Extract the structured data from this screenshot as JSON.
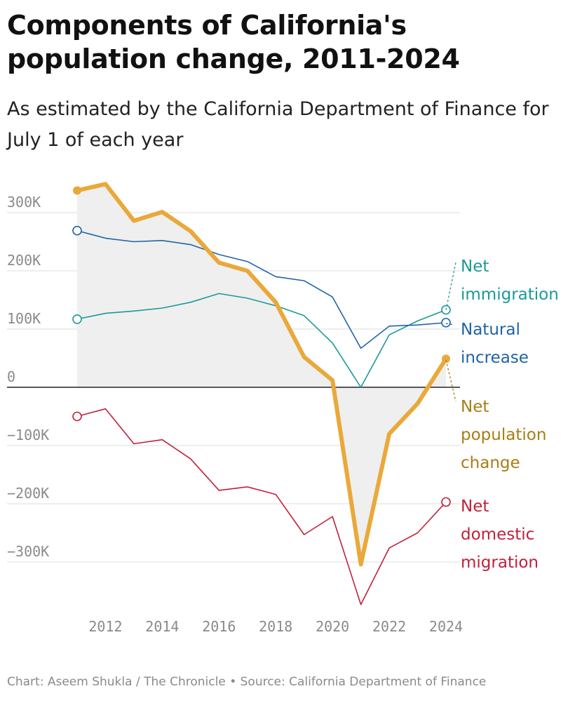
{
  "header": {
    "title": "Components of California's population change, 2011-2024",
    "subtitle": "As estimated by the California Department of Finance for July 1 of each year"
  },
  "footer": {
    "credit": "Chart: Aseem Shukla / The Chronicle • Source: California Department of Finance"
  },
  "chart_data": {
    "type": "line",
    "title": "Components of California's population change, 2011-2024",
    "subtitle": "As estimated by the California Department of Finance for July 1 of each year",
    "x": [
      2011,
      2012,
      2013,
      2014,
      2015,
      2016,
      2017,
      2018,
      2019,
      2020,
      2021,
      2022,
      2023,
      2024
    ],
    "x_ticks": [
      2012,
      2014,
      2016,
      2018,
      2020,
      2022,
      2024
    ],
    "x_tick_labels": [
      "2012",
      "2014",
      "2016",
      "2018",
      "2020",
      "2022",
      "2024"
    ],
    "y_ticks": [
      300000,
      200000,
      100000,
      0,
      -100000,
      -200000,
      -300000
    ],
    "y_tick_labels": [
      "300K",
      "200K",
      "100K",
      "0",
      "−100K",
      "−200K",
      "−300K"
    ],
    "ylim": [
      -385000,
      350000
    ],
    "grid": true,
    "legend": "direct labels at line ends (right)",
    "shaded_series": "Net population change",
    "series": [
      {
        "name": "Net immigration",
        "label_lines": [
          "Net",
          "immigration"
        ],
        "color": "#1a9a96",
        "values": [
          117000,
          127000,
          131000,
          136000,
          146000,
          161000,
          153000,
          140000,
          123000,
          76000,
          0,
          90000,
          114000,
          133000
        ]
      },
      {
        "name": "Natural increase",
        "label_lines": [
          "Natural",
          "increase"
        ],
        "color": "#1f63a8",
        "values": [
          269000,
          256000,
          250000,
          252000,
          245000,
          228000,
          216000,
          190000,
          183000,
          155000,
          67000,
          105000,
          107000,
          111000
        ]
      },
      {
        "name": "Net population change",
        "label_lines": [
          "Net",
          "population",
          "change"
        ],
        "color": "#e9a93a",
        "label_color": "#a97d14",
        "values": [
          338000,
          349000,
          286000,
          301000,
          268000,
          214000,
          200000,
          146000,
          52000,
          12000,
          -304000,
          -80000,
          -28000,
          49000
        ]
      },
      {
        "name": "Net domestic migration",
        "label_lines": [
          "Net",
          "domestic",
          "migration"
        ],
        "color": "#c0213a",
        "values": [
          -50000,
          -37000,
          -97000,
          -90000,
          -123000,
          -177000,
          -171000,
          -184000,
          -253000,
          -222000,
          -373000,
          -276000,
          -250000,
          -197000
        ]
      }
    ]
  }
}
